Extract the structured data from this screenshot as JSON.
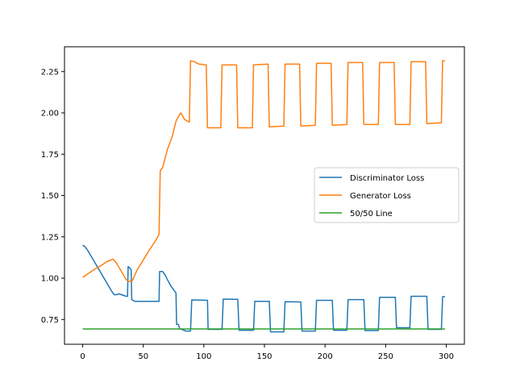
{
  "chart_data": {
    "type": "line",
    "title": "",
    "xlabel": "",
    "ylabel": "",
    "xlim": [
      -15,
      315
    ],
    "ylim": [
      0.6,
      2.4
    ],
    "xticks": [
      0,
      50,
      100,
      150,
      200,
      250,
      300
    ],
    "yticks": [
      0.75,
      1.0,
      1.25,
      1.5,
      1.75,
      2.0,
      2.25
    ],
    "ytick_labels": [
      "0.75",
      "1.00",
      "1.25",
      "1.50",
      "1.75",
      "2.00",
      "2.25"
    ],
    "legend_position": "center-right",
    "series": [
      {
        "name": "Discriminator Loss",
        "color": "#1f77b4",
        "points": [
          [
            0,
            1.2
          ],
          [
            2,
            1.19
          ],
          [
            4,
            1.17
          ],
          [
            8,
            1.12
          ],
          [
            12,
            1.07
          ],
          [
            16,
            1.02
          ],
          [
            20,
            0.97
          ],
          [
            24,
            0.92
          ],
          [
            26,
            0.9
          ],
          [
            28,
            0.9
          ],
          [
            30,
            0.905
          ],
          [
            32,
            0.9
          ],
          [
            34,
            0.895
          ],
          [
            36,
            0.89
          ],
          [
            37,
            0.89
          ],
          [
            37.5,
            1.07
          ],
          [
            39,
            1.06
          ],
          [
            40,
            1.05
          ],
          [
            40.5,
            0.87
          ],
          [
            43,
            0.86
          ],
          [
            50,
            0.86
          ],
          [
            56,
            0.86
          ],
          [
            60,
            0.86
          ],
          [
            63,
            0.86
          ],
          [
            63.5,
            1.04
          ],
          [
            66,
            1.04
          ],
          [
            68,
            1.02
          ],
          [
            70,
            0.99
          ],
          [
            73,
            0.95
          ],
          [
            77,
            0.91
          ],
          [
            77.5,
            0.72
          ],
          [
            79,
            0.72
          ],
          [
            80,
            0.695
          ],
          [
            85,
            0.68
          ],
          [
            89,
            0.68
          ],
          [
            90,
            0.868
          ],
          [
            103,
            0.866
          ],
          [
            103.5,
            0.69
          ],
          [
            115,
            0.69
          ],
          [
            116,
            0.873
          ],
          [
            128,
            0.872
          ],
          [
            129,
            0.685
          ],
          [
            141,
            0.685
          ],
          [
            142,
            0.86
          ],
          [
            154,
            0.86
          ],
          [
            155,
            0.675
          ],
          [
            166,
            0.675
          ],
          [
            167,
            0.857
          ],
          [
            180,
            0.856
          ],
          [
            181,
            0.68
          ],
          [
            192,
            0.68
          ],
          [
            193,
            0.866
          ],
          [
            206,
            0.866
          ],
          [
            207,
            0.685
          ],
          [
            218,
            0.685
          ],
          [
            219,
            0.87
          ],
          [
            232,
            0.87
          ],
          [
            233,
            0.683
          ],
          [
            244,
            0.683
          ],
          [
            245,
            0.884
          ],
          [
            258,
            0.884
          ],
          [
            259,
            0.7
          ],
          [
            270,
            0.7
          ],
          [
            271,
            0.89
          ],
          [
            284,
            0.89
          ],
          [
            285,
            0.69
          ],
          [
            296,
            0.69
          ],
          [
            297,
            0.888
          ],
          [
            299,
            0.888
          ]
        ]
      },
      {
        "name": "Generator Loss",
        "color": "#ff7f0e",
        "points": [
          [
            0,
            1.005
          ],
          [
            5,
            1.03
          ],
          [
            10,
            1.055
          ],
          [
            15,
            1.075
          ],
          [
            20,
            1.1
          ],
          [
            25,
            1.115
          ],
          [
            28,
            1.09
          ],
          [
            32,
            1.04
          ],
          [
            36,
            0.99
          ],
          [
            38,
            0.98
          ],
          [
            41,
            0.985
          ],
          [
            45,
            1.05
          ],
          [
            50,
            1.11
          ],
          [
            55,
            1.17
          ],
          [
            60,
            1.225
          ],
          [
            63,
            1.265
          ],
          [
            64,
            1.65
          ],
          [
            66,
            1.67
          ],
          [
            70,
            1.78
          ],
          [
            74,
            1.86
          ],
          [
            77,
            1.95
          ],
          [
            80,
            1.99
          ],
          [
            81,
            2.0
          ],
          [
            84,
            1.96
          ],
          [
            88,
            1.945
          ],
          [
            89,
            2.315
          ],
          [
            92,
            2.31
          ],
          [
            96,
            2.295
          ],
          [
            102,
            2.29
          ],
          [
            103,
            1.91
          ],
          [
            114,
            1.91
          ],
          [
            115,
            2.29
          ],
          [
            127,
            2.29
          ],
          [
            128,
            1.91
          ],
          [
            140,
            1.91
          ],
          [
            141,
            2.29
          ],
          [
            153,
            2.295
          ],
          [
            154,
            1.915
          ],
          [
            166,
            1.92
          ],
          [
            167,
            2.295
          ],
          [
            179,
            2.295
          ],
          [
            180,
            1.92
          ],
          [
            192,
            1.925
          ],
          [
            193,
            2.3
          ],
          [
            205,
            2.3
          ],
          [
            206,
            1.925
          ],
          [
            218,
            1.93
          ],
          [
            219,
            2.305
          ],
          [
            231,
            2.305
          ],
          [
            232,
            1.93
          ],
          [
            244,
            1.93
          ],
          [
            245,
            2.305
          ],
          [
            257,
            2.305
          ],
          [
            258,
            1.93
          ],
          [
            270,
            1.93
          ],
          [
            271,
            2.31
          ],
          [
            283,
            2.31
          ],
          [
            284,
            1.935
          ],
          [
            296,
            1.94
          ],
          [
            297,
            2.315
          ],
          [
            299,
            2.315
          ]
        ]
      },
      {
        "name": "50/50 Line",
        "color": "#2ca02c",
        "points": [
          [
            0,
            0.693
          ],
          [
            299,
            0.693
          ]
        ]
      }
    ]
  }
}
